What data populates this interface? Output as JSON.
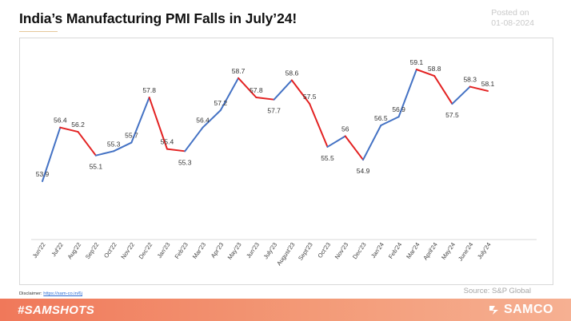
{
  "header": {
    "title": "India’s Manufacturing PMI Falls in July’24!",
    "posted_label": "Posted on",
    "posted_date": "01-08-2024"
  },
  "footer": {
    "hashtag": "#SAMSHOTS",
    "brand": "SAMCO",
    "disclaimer_label": "Disclaimer:",
    "disclaimer_link": "https://sam-co.in/6j",
    "source": "Source: S&P Global"
  },
  "colors": {
    "rise": "#4472c4",
    "fall": "#e32222",
    "accent": "#f0785a"
  },
  "chart_data": {
    "type": "line",
    "title": "India’s Manufacturing PMI Falls in July’24!",
    "categories": [
      "Jun'22",
      "Jul'22",
      "Aug'22",
      "Sep'22",
      "Oct'22",
      "Nov'22",
      "Dec'22",
      "Jan'23",
      "Feb'23",
      "Mar'23",
      "Apr'23",
      "May'23",
      "Jun'23",
      "July'23",
      "August'23",
      "Sept'23",
      "Oct'23",
      "Nov'23",
      "Dec'23",
      "Jan'24",
      "Feb'24",
      "Mar'24",
      "April'24",
      "May'24",
      "June'24",
      "July'24"
    ],
    "values": [
      53.9,
      56.4,
      56.2,
      55.1,
      55.3,
      55.7,
      57.8,
      55.4,
      55.3,
      56.4,
      57.2,
      58.7,
      57.8,
      57.7,
      58.6,
      57.5,
      55.5,
      56,
      54.9,
      56.5,
      56.9,
      59.1,
      58.8,
      57.5,
      58.3,
      58.1
    ],
    "data_labels": [
      "53.9",
      "56.4",
      "56.2",
      "55.1",
      "55.3",
      "55.7",
      "57.8",
      "55.4",
      "55.3",
      "56.4",
      "57.2",
      "58.7",
      "57.8",
      "57.7",
      "58.6",
      "57.5",
      "55.5",
      "56",
      "54.9",
      "56.5",
      "56.9",
      "59.1",
      "58.8",
      "57.5",
      "58.3",
      "58.1"
    ],
    "segment_coloring": "blue when rising, red when falling",
    "xlabel": "",
    "ylabel": "",
    "grid": false,
    "legend": "none"
  }
}
